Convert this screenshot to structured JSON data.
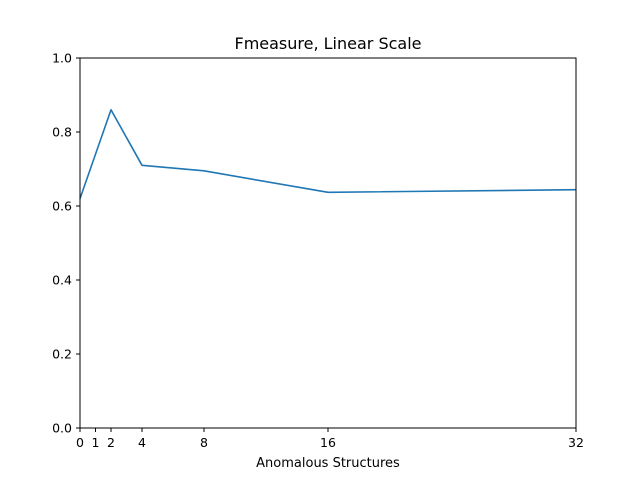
{
  "chart_data": {
    "type": "line",
    "title": "Fmeasure, Linear Scale",
    "xlabel": "Anomalous Structures",
    "ylabel": "",
    "xlim": [
      0,
      32
    ],
    "ylim": [
      0,
      1.0
    ],
    "x_ticks": [
      0,
      1,
      2,
      4,
      8,
      16,
      32
    ],
    "x_tick_labels": [
      "0",
      "1",
      "2",
      "4",
      "8",
      "16",
      "32"
    ],
    "y_ticks": [
      0,
      0.2,
      0.4,
      0.6,
      0.8,
      1.0
    ],
    "y_tick_labels": [
      "0.0",
      "0.2",
      "0.4",
      "0.6",
      "0.8",
      "1.0"
    ],
    "grid": false,
    "series": [
      {
        "color": "#1f77b4",
        "x": [
          0,
          2,
          4,
          8,
          16,
          32
        ],
        "y": [
          0.62,
          0.86,
          0.71,
          0.695,
          0.637,
          0.644
        ]
      }
    ]
  }
}
